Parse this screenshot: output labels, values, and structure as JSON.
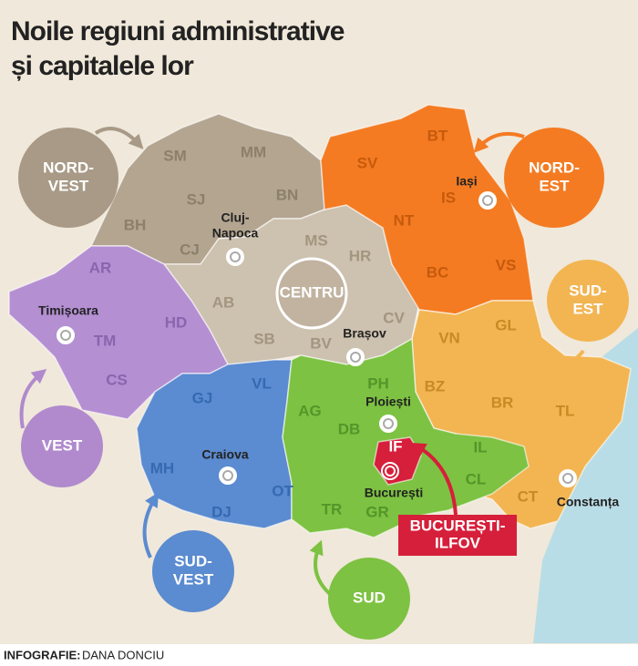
{
  "title": [
    "Noile regiuni administrative",
    "și capitalele lor"
  ],
  "regions": [
    {
      "name": [
        "NORD-",
        "VEST"
      ],
      "counties": [
        "SM",
        "MM",
        "SJ",
        "BN",
        "BH",
        "CJ"
      ],
      "capital": [
        "Cluj-",
        "Napoca"
      ]
    },
    {
      "name": [
        "CENTRU"
      ],
      "counties": [
        "MS",
        "HR",
        "AB",
        "SB",
        "BV",
        "CV"
      ],
      "capital": [
        "Brașov"
      ]
    },
    {
      "name": [
        "NORD-",
        "EST"
      ],
      "counties": [
        "BT",
        "SV",
        "IS",
        "NT",
        "BC",
        "VS"
      ],
      "capital": [
        "Iași"
      ]
    },
    {
      "name": [
        "SUD-",
        "EST"
      ],
      "counties": [
        "VN",
        "GL",
        "BZ",
        "BR",
        "TL",
        "CT"
      ],
      "capital": [
        "Constanța"
      ]
    },
    {
      "name": [
        "VEST"
      ],
      "counties": [
        "AR",
        "HD",
        "TM",
        "CS"
      ],
      "capital": [
        "Timișoara"
      ]
    },
    {
      "name": [
        "SUD-",
        "VEST"
      ],
      "counties": [
        "GJ",
        "VL",
        "MH",
        "DJ",
        "OT"
      ],
      "capital": [
        "Craiova"
      ]
    },
    {
      "name": [
        "SUD"
      ],
      "counties": [
        "AG",
        "PH",
        "DB",
        "TR",
        "GR",
        "IL",
        "CL"
      ],
      "capital": [
        "Ploiești"
      ]
    },
    {
      "name": [
        "BUCUREȘTI-",
        "ILFOV"
      ],
      "counties": [
        "IF"
      ],
      "capital": [
        "București"
      ]
    }
  ],
  "credit": {
    "label": "INFOGRAFIE:",
    "author": "DANA DONCIU"
  }
}
